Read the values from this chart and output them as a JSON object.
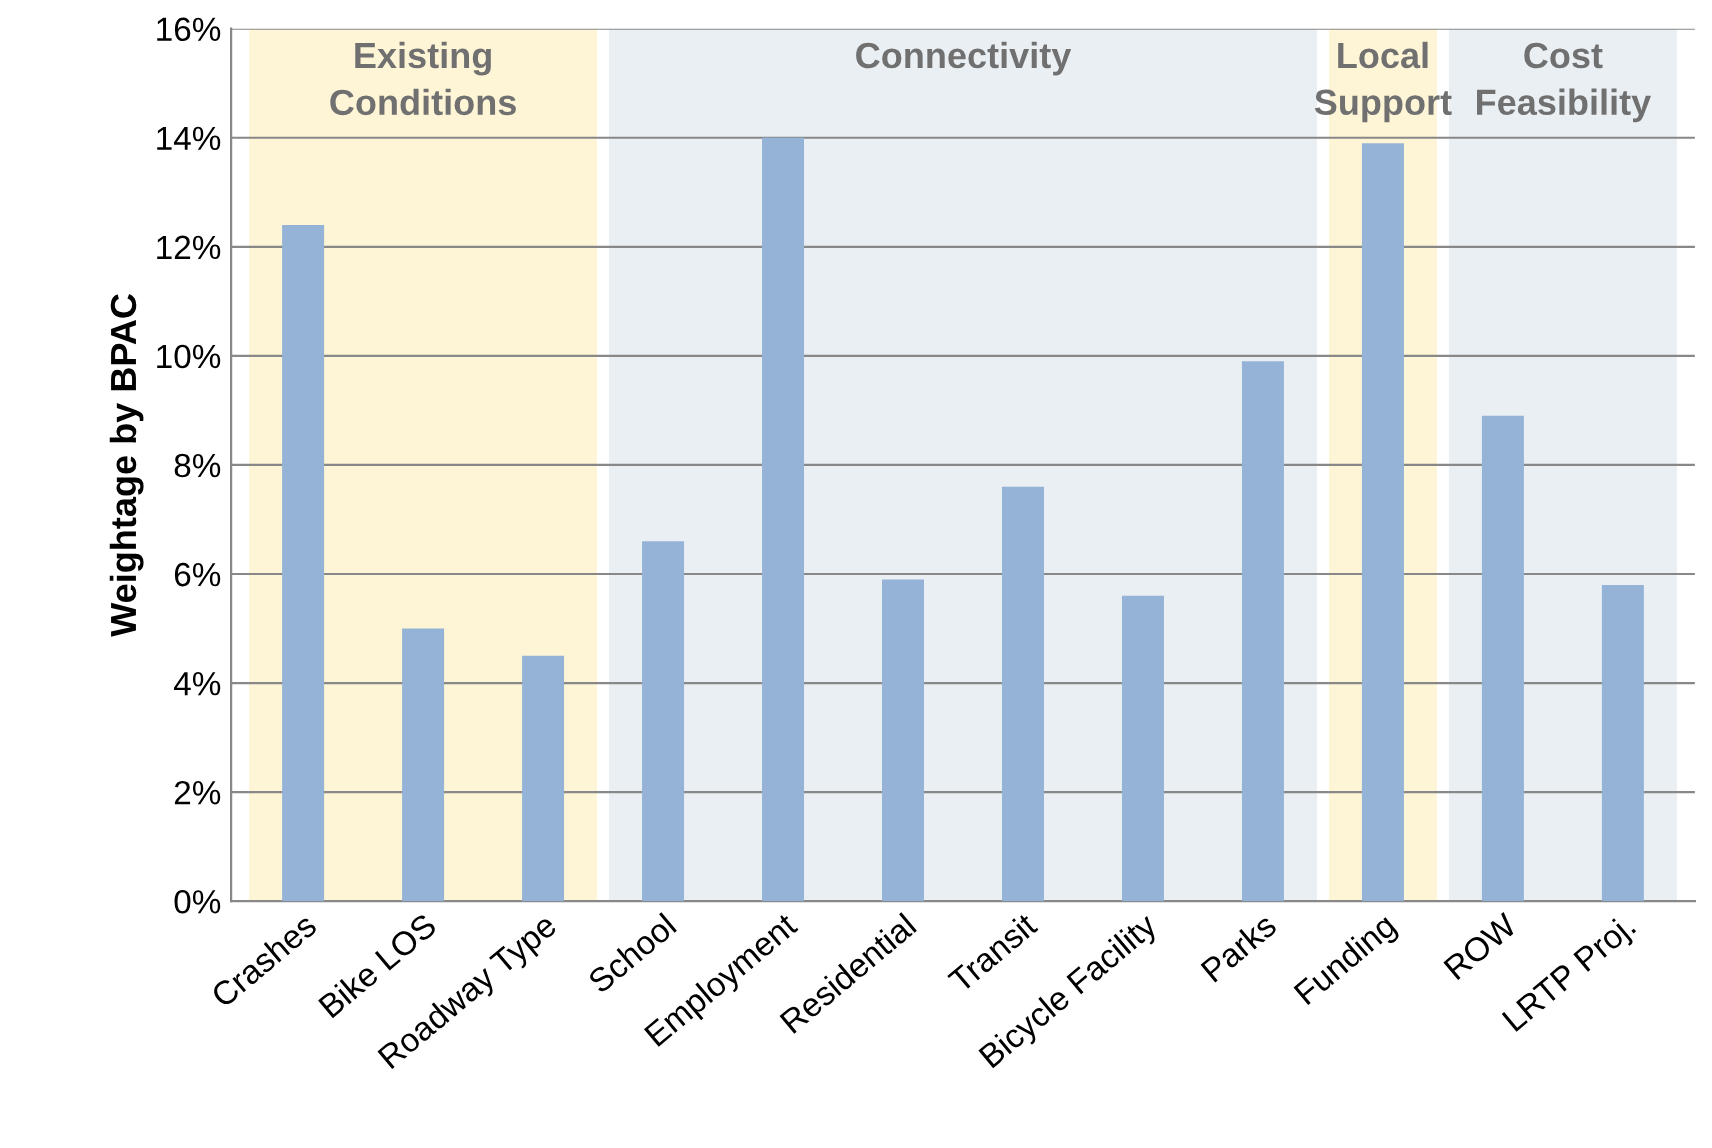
{
  "chart_data": {
    "type": "bar",
    "ylabel": "Weightage by BPAC",
    "categories": [
      "Crashes",
      "Bike LOS",
      "Roadway Type",
      "School",
      "Employment",
      "Residential",
      "Transit",
      "Bicycle Facility",
      "Parks",
      "Funding",
      "ROW",
      "LRTP Proj."
    ],
    "values": [
      12.4,
      5.0,
      4.5,
      6.6,
      14.0,
      5.9,
      7.6,
      5.6,
      9.9,
      13.9,
      8.9,
      5.8
    ],
    "color": "#95b3d7",
    "ylim": [
      0,
      16
    ],
    "yticks": [
      {
        "value": 0,
        "label": "0%"
      },
      {
        "value": 2,
        "label": "2%"
      },
      {
        "value": 4,
        "label": "4%"
      },
      {
        "value": 6,
        "label": "6%"
      },
      {
        "value": 8,
        "label": "8%"
      },
      {
        "value": 10,
        "label": "10%"
      },
      {
        "value": 12,
        "label": "12%"
      },
      {
        "value": 14,
        "label": "14%"
      },
      {
        "value": 16,
        "label": "16%"
      }
    ],
    "grid": "y",
    "bands": [
      {
        "axis": "x",
        "from": "Crashes",
        "to": "Roadway Type",
        "label": "Existing\nConditions",
        "color": "#fdf5d6"
      },
      {
        "axis": "x",
        "from": "School",
        "to": "Parks",
        "label": "Connectivity",
        "color": "#e9eff3"
      },
      {
        "axis": "x",
        "from": "Funding",
        "to": "Funding",
        "label": "Local\nSupport",
        "color": "#fdf5d6"
      },
      {
        "axis": "x",
        "from": "ROW",
        "to": "LRTP Proj.",
        "label": "Cost\nFeasibility",
        "color": "#e9eff3"
      }
    ]
  }
}
